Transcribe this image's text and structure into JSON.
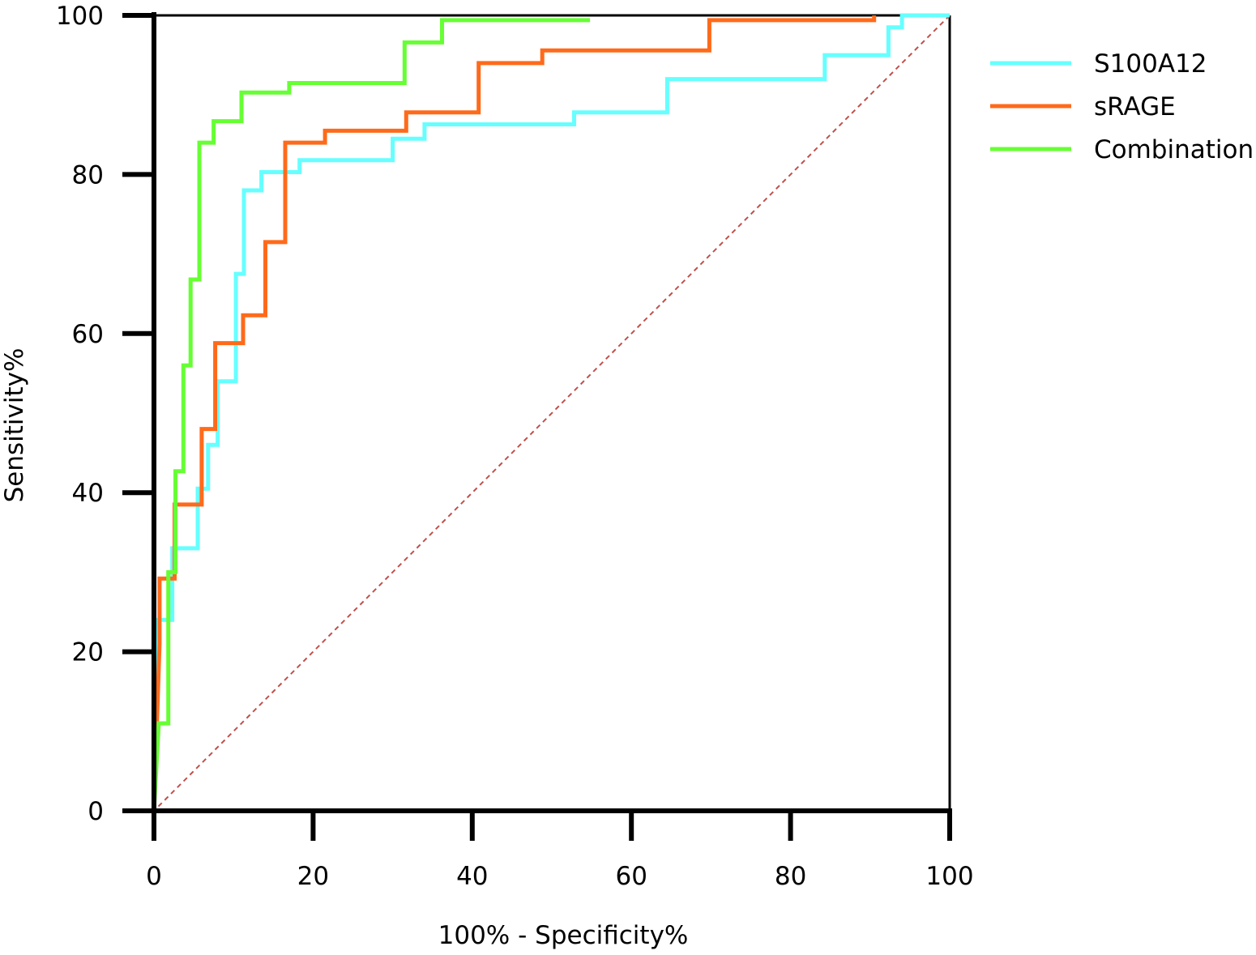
{
  "chart_data": {
    "type": "line",
    "title": "",
    "xlabel": "100% - Specificity%",
    "ylabel": "Sensitivity%",
    "xlim": [
      0,
      100
    ],
    "ylim": [
      0,
      100
    ],
    "xticks": [
      "0",
      "20",
      "40",
      "60",
      "80",
      "100"
    ],
    "yticks": [
      "0",
      "20",
      "40",
      "60",
      "80",
      "100"
    ],
    "grid": false,
    "legend_position": "right",
    "reference_line": {
      "from": [
        0,
        0
      ],
      "to": [
        100,
        100
      ],
      "style": "dashed",
      "color": "#c0504d"
    },
    "series": [
      {
        "name": "S100A12",
        "color": "#66ffff",
        "x": [
          0,
          0.5,
          2.3,
          2.3,
          5.5,
          5.5,
          6.8,
          6.8,
          8.0,
          8.0,
          10.3,
          10.3,
          11.3,
          11.3,
          13.5,
          13.5,
          18.3,
          18.3,
          30.0,
          30.0,
          34.0,
          34.0,
          52.8,
          52.8,
          64.5,
          64.5,
          84.3,
          84.3,
          92.3,
          92.3,
          94.0,
          94.0,
          100
        ],
        "y": [
          0,
          24,
          24,
          33,
          33,
          40.5,
          40.5,
          46,
          46,
          54,
          54,
          67.5,
          67.5,
          78,
          78,
          80.3,
          80.3,
          81.8,
          81.8,
          84.5,
          84.5,
          86.3,
          86.3,
          87.8,
          87.8,
          92,
          92,
          95,
          95,
          98.5,
          98.5,
          100,
          100
        ]
      },
      {
        "name": "sRAGE",
        "color": "#ff6a1a",
        "x": [
          0,
          0.7,
          0.7,
          1.5,
          1.5,
          2.6,
          2.6,
          6.0,
          6.0,
          7.7,
          7.7,
          11.2,
          11.2,
          14.0,
          14.0,
          16.5,
          16.5,
          21.5,
          21.5,
          29.5,
          29.5,
          31.7,
          31.7,
          40.8,
          40.8,
          48.8,
          48.8,
          69.8,
          69.8,
          90.5,
          90.5
        ],
        "y": [
          0,
          21,
          29.2,
          29.2,
          29.2,
          29.2,
          38.5,
          38.5,
          48,
          48,
          58.8,
          58.8,
          62.3,
          62.3,
          71.5,
          71.5,
          84,
          84,
          85.5,
          85.5,
          85.5,
          85.5,
          87.8,
          87.8,
          94,
          94,
          95.6,
          95.6,
          99.4,
          99.4,
          100
        ]
      },
      {
        "name": "Combination",
        "color": "#66ff33",
        "x": [
          0,
          0.6,
          1.8,
          1.8,
          2.7,
          2.7,
          3.7,
          3.7,
          4.6,
          4.6,
          5.7,
          5.7,
          7.5,
          7.5,
          11.0,
          11.0,
          17.0,
          17.0,
          31.5,
          31.5,
          36.2,
          36.2,
          54.8
        ],
        "y": [
          0,
          11,
          11,
          30,
          30,
          42.7,
          42.7,
          56,
          56,
          66.8,
          66.8,
          84,
          84,
          86.7,
          86.7,
          90.3,
          90.3,
          91.5,
          91.5,
          96.6,
          96.6,
          99.4,
          99.4
        ]
      }
    ]
  }
}
